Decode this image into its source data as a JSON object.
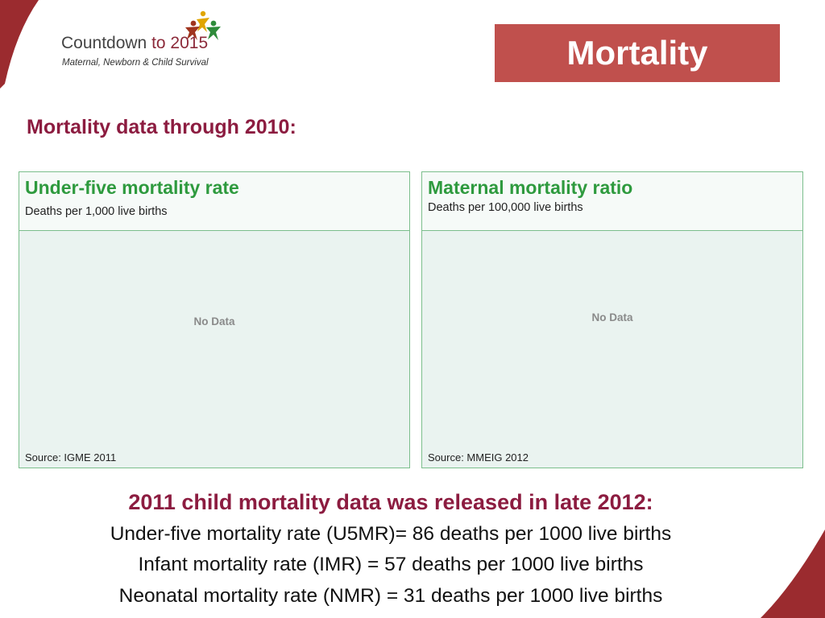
{
  "logo": {
    "title_prefix": "Countdown ",
    "title_accent": "to 2015",
    "tagline": "Maternal, Newborn & Child Survival"
  },
  "slide": {
    "title": "Mortality",
    "subtitle": "Mortality data through 2010:"
  },
  "panels": [
    {
      "title": "Under-five mortality rate",
      "unit": "Deaths per 1,000 live births",
      "no_data": "No Data",
      "source": "Source: IGME 2011"
    },
    {
      "title": "Maternal mortality ratio",
      "unit": "Deaths per 100,000 live births",
      "no_data": "No Data",
      "source": "Source: MMEIG 2012"
    }
  ],
  "release": {
    "heading": "2011 child mortality data was released in late 2012:",
    "lines": [
      "Under-five mortality rate (U5MR)= 86 deaths per 1000 live births",
      "Infant mortality rate (IMR) = 57 deaths per 1000 live births",
      "Neonatal mortality rate (NMR) = 31 deaths per 1000 live births"
    ]
  },
  "colors": {
    "accent": "#c0504d",
    "heading": "#8c1c40",
    "panel_title": "#2e9a3e",
    "panel_border": "#7cbe8c"
  }
}
